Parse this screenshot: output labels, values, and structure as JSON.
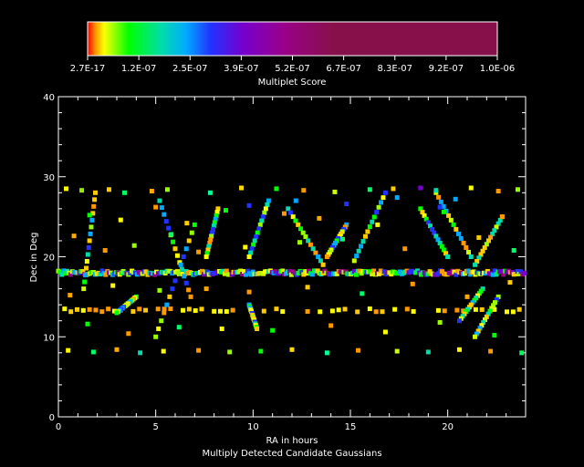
{
  "chart_data": {
    "type": "scatter",
    "colorbar": {
      "title": "Multiplet Score",
      "tick_labels": [
        "2.7E-17",
        "1.2E-07",
        "2.5E-07",
        "3.9E-07",
        "5.2E-07",
        "6.7E-07",
        "8.3E-07",
        "9.2E-07",
        "1.0E-06"
      ],
      "colors": [
        "#ff0000",
        "#ff9900",
        "#ffff00",
        "#00ff00",
        "#00ddaa",
        "#00aaff",
        "#2233ff",
        "#7700cc",
        "#990088",
        "#88104a"
      ]
    },
    "xlabel": "RA in hours",
    "ylabel": "Dec in Deg",
    "caption": "Multiply Detected Candidate Gaussians",
    "xlim": [
      0,
      24
    ],
    "ylim": [
      0,
      40
    ],
    "xticks": [
      0,
      5,
      10,
      15,
      20
    ],
    "yticks": [
      0,
      10,
      20,
      30,
      40
    ],
    "grid": false,
    "structures": {
      "dense_band_dec": 18,
      "secondary_band_dec": 13.3,
      "upper_band_dec": 28.5,
      "lower_band_dec": 8.2
    },
    "points": [
      [
        0.4,
        28.5,
        "#ffff00"
      ],
      [
        1.2,
        28.3,
        "#99ee00"
      ],
      [
        2.6,
        28.4,
        "#ffcc00"
      ],
      [
        3.4,
        28.0,
        "#00ff66"
      ],
      [
        4.8,
        28.2,
        "#ffaa00"
      ],
      [
        5.6,
        28.4,
        "#99ff00"
      ],
      [
        7.8,
        28.0,
        "#00ff99"
      ],
      [
        9.4,
        28.6,
        "#ffdd00"
      ],
      [
        11.2,
        28.5,
        "#00ff00"
      ],
      [
        12.6,
        28.3,
        "#ff9900"
      ],
      [
        14.2,
        28.1,
        "#ccff00"
      ],
      [
        16.0,
        28.4,
        "#00ff66"
      ],
      [
        17.2,
        28.5,
        "#ffcc00"
      ],
      [
        18.6,
        28.6,
        "#7700cc"
      ],
      [
        19.4,
        28.3,
        "#00ddaa"
      ],
      [
        21.2,
        28.6,
        "#ffff00"
      ],
      [
        22.6,
        28.2,
        "#ff9900"
      ],
      [
        23.6,
        28.4,
        "#99ff00"
      ],
      [
        0.5,
        8.3,
        "#ffff00"
      ],
      [
        1.8,
        8.1,
        "#00ff66"
      ],
      [
        3.0,
        8.4,
        "#ffaa00"
      ],
      [
        4.2,
        8.0,
        "#00ddaa"
      ],
      [
        5.4,
        8.2,
        "#ffff00"
      ],
      [
        7.2,
        8.3,
        "#ff9900"
      ],
      [
        8.8,
        8.1,
        "#99ff00"
      ],
      [
        10.4,
        8.2,
        "#00ff00"
      ],
      [
        12.0,
        8.4,
        "#ffdd00"
      ],
      [
        13.8,
        8.0,
        "#00ff99"
      ],
      [
        15.4,
        8.3,
        "#ff9900"
      ],
      [
        17.4,
        8.2,
        "#ccff00"
      ],
      [
        19.0,
        8.1,
        "#00ddaa"
      ],
      [
        20.6,
        8.4,
        "#ffff00"
      ],
      [
        22.2,
        8.2,
        "#ff9900"
      ],
      [
        23.8,
        8.0,
        "#00ff66"
      ],
      [
        0.8,
        22.6,
        "#ffaa00"
      ],
      [
        1.6,
        25.2,
        "#00ff00"
      ],
      [
        2.4,
        20.8,
        "#ff9900"
      ],
      [
        3.2,
        24.6,
        "#ffff00"
      ],
      [
        3.9,
        21.4,
        "#99ff00"
      ],
      [
        5.0,
        26.2,
        "#ff9900"
      ],
      [
        5.8,
        22.8,
        "#00ff66"
      ],
      [
        6.6,
        24.2,
        "#ffcc00"
      ],
      [
        7.2,
        20.6,
        "#ff9900"
      ],
      [
        8.6,
        25.8,
        "#00ff00"
      ],
      [
        9.6,
        21.2,
        "#ffff00"
      ],
      [
        11.6,
        25.4,
        "#ff9900"
      ],
      [
        12.4,
        21.8,
        "#99ff00"
      ],
      [
        13.4,
        24.8,
        "#ffaa00"
      ],
      [
        14.6,
        22.2,
        "#00ff66"
      ],
      [
        16.4,
        24.0,
        "#ffff00"
      ],
      [
        17.8,
        21.0,
        "#ff9900"
      ],
      [
        19.8,
        25.6,
        "#00ff00"
      ],
      [
        21.6,
        22.4,
        "#ffcc00"
      ],
      [
        22.8,
        25.0,
        "#ff9900"
      ],
      [
        23.4,
        20.8,
        "#00ff66"
      ],
      [
        0.6,
        15.2,
        "#ffaa00"
      ],
      [
        1.5,
        11.6,
        "#00ff00"
      ],
      [
        2.8,
        16.4,
        "#ffff00"
      ],
      [
        3.6,
        10.4,
        "#ff9900"
      ],
      [
        5.2,
        15.8,
        "#99ff00"
      ],
      [
        6.2,
        11.2,
        "#00ff66"
      ],
      [
        7.6,
        16.0,
        "#ffaa00"
      ],
      [
        8.4,
        11.0,
        "#ffff00"
      ],
      [
        9.8,
        15.6,
        "#ff9900"
      ],
      [
        11.0,
        10.8,
        "#00ff00"
      ],
      [
        12.8,
        16.2,
        "#ffcc00"
      ],
      [
        14.0,
        11.4,
        "#ff9900"
      ],
      [
        15.6,
        15.4,
        "#00ff66"
      ],
      [
        16.8,
        10.6,
        "#ffff00"
      ],
      [
        18.2,
        16.6,
        "#ff9900"
      ],
      [
        19.6,
        11.8,
        "#99ff00"
      ],
      [
        21.0,
        15.0,
        "#ffaa00"
      ],
      [
        22.4,
        10.2,
        "#00ff00"
      ],
      [
        23.2,
        16.8,
        "#ffcc00"
      ],
      [
        9.8,
        26.4,
        "#2233ff"
      ],
      [
        12.2,
        27.0,
        "#00aaff"
      ],
      [
        14.8,
        26.6,
        "#2233ff"
      ],
      [
        17.4,
        27.4,
        "#00aaff"
      ],
      [
        19.6,
        26.2,
        "#2233ff"
      ],
      [
        20.4,
        27.2,
        "#00aaff"
      ]
    ]
  }
}
